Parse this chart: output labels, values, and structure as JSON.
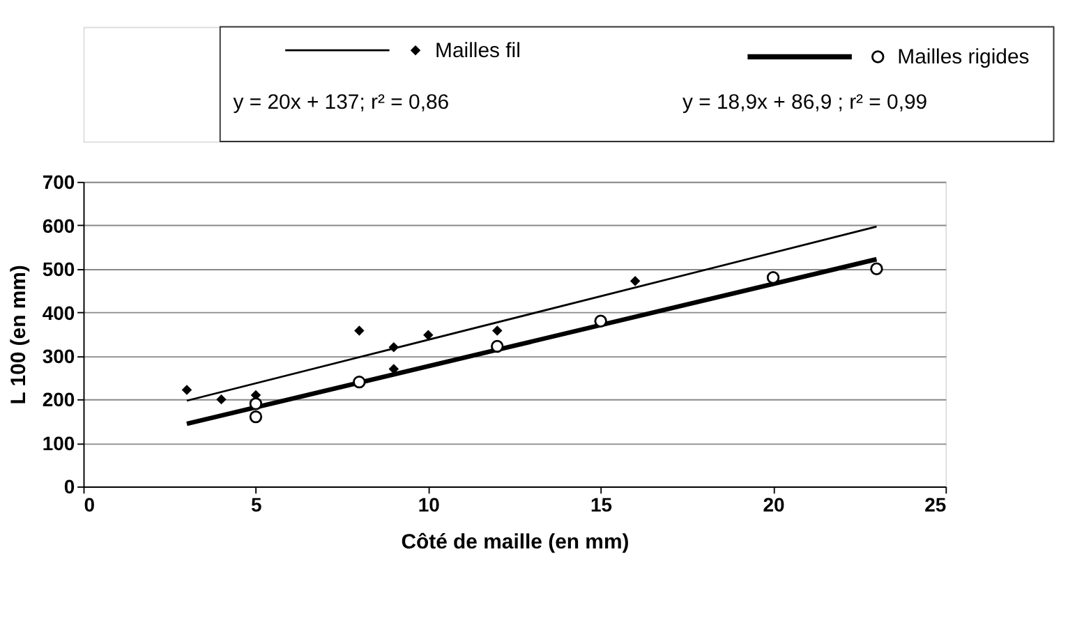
{
  "chart_data": {
    "type": "scatter",
    "xlabel": "Côté de maille (en mm)",
    "ylabel": "L 100 (en mm)",
    "xlim": [
      0,
      25
    ],
    "xticks": [
      0,
      5,
      10,
      15,
      20,
      25
    ],
    "ylim": [
      0,
      700
    ],
    "yticks": [
      0,
      100,
      200,
      300,
      400,
      500,
      600,
      700
    ],
    "grid": "y",
    "legend": "top",
    "series": [
      {
        "name": "Mailles fil",
        "marker": "diamond",
        "color": "#000000",
        "x": [
          3,
          4,
          5,
          8,
          9,
          9,
          10,
          12,
          16
        ],
        "values": [
          222,
          200,
          210,
          358,
          320,
          270,
          348,
          358,
          472
        ]
      },
      {
        "type": "line",
        "color": "#000000",
        "line_style": "solid",
        "x": [
          3,
          23
        ],
        "values": [
          197,
          597
        ]
      },
      {
        "name": "Mailles rigides",
        "marker": "circle",
        "color": "#000000",
        "x": [
          5,
          5,
          8,
          12,
          15,
          20,
          23
        ],
        "values": [
          160,
          190,
          240,
          322,
          380,
          480,
          500
        ]
      },
      {
        "type": "line",
        "color": "#000000",
        "line_style": "solid",
        "x": [
          3,
          23
        ],
        "values": [
          144,
          522
        ]
      }
    ],
    "annotations": [
      "y = 20x + 137; r² = 0,86",
      "y = 18,9x + 86,9 ; r² = 0,99"
    ]
  }
}
